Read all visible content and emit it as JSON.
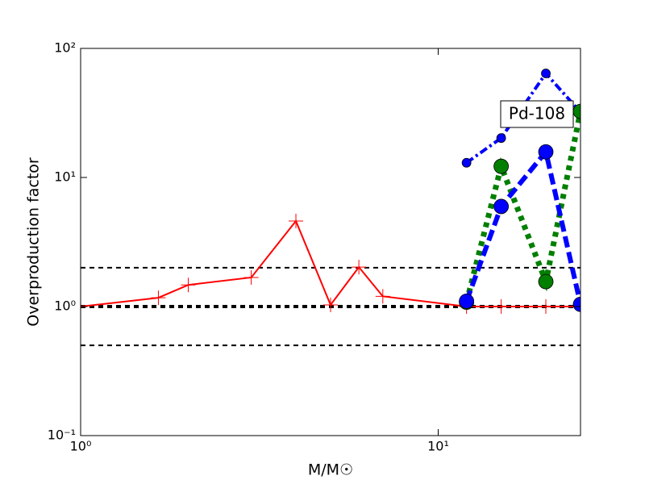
{
  "chart_data": {
    "type": "line",
    "x_label": "M/M☉",
    "y_label": "Overproduction factor",
    "annotation": "Pd-108",
    "xscale": "log",
    "yscale": "log",
    "xlim": [
      1,
      25
    ],
    "ylim": [
      0.1,
      100
    ],
    "xticks": [
      {
        "value": 1,
        "label": "10⁰"
      },
      {
        "value": 10,
        "label": "10¹"
      }
    ],
    "yticks": [
      {
        "value": 0.1,
        "label": "10⁻¹"
      },
      {
        "value": 1,
        "label": "10⁰"
      },
      {
        "value": 10,
        "label": "10¹"
      },
      {
        "value": 100,
        "label": "10²"
      }
    ],
    "hlines": [
      2,
      1,
      0.5
    ],
    "series": [
      {
        "color": "#ff0000",
        "line_style": "solid",
        "marker": "plus",
        "marker_size": "large",
        "x": [
          1,
          1.65,
          2,
          3,
          4,
          5,
          6,
          7,
          12,
          15,
          20,
          25
        ],
        "values": [
          1,
          1.17,
          1.47,
          1.68,
          4.6,
          1.03,
          2.02,
          1.2,
          1,
          1,
          1,
          1
        ]
      },
      {
        "color": "#0000ff",
        "line_style": "dashdot",
        "marker": "circle",
        "marker_size": "small",
        "x": [
          12,
          15,
          20,
          25
        ],
        "values": [
          13,
          20.2,
          64,
          32
        ]
      },
      {
        "color": "#007f00",
        "line_style": "dotted",
        "marker": "circle",
        "marker_size": "large",
        "x": [
          12,
          15,
          20,
          25
        ],
        "values": [
          1.08,
          12.2,
          1.56,
          32.5
        ]
      },
      {
        "color": "#0000ff",
        "line_style": "dashed",
        "marker": "circle",
        "marker_size": "large",
        "x": [
          12,
          15,
          20,
          25
        ],
        "values": [
          1.1,
          5.96,
          15.8,
          1.04
        ]
      }
    ]
  }
}
